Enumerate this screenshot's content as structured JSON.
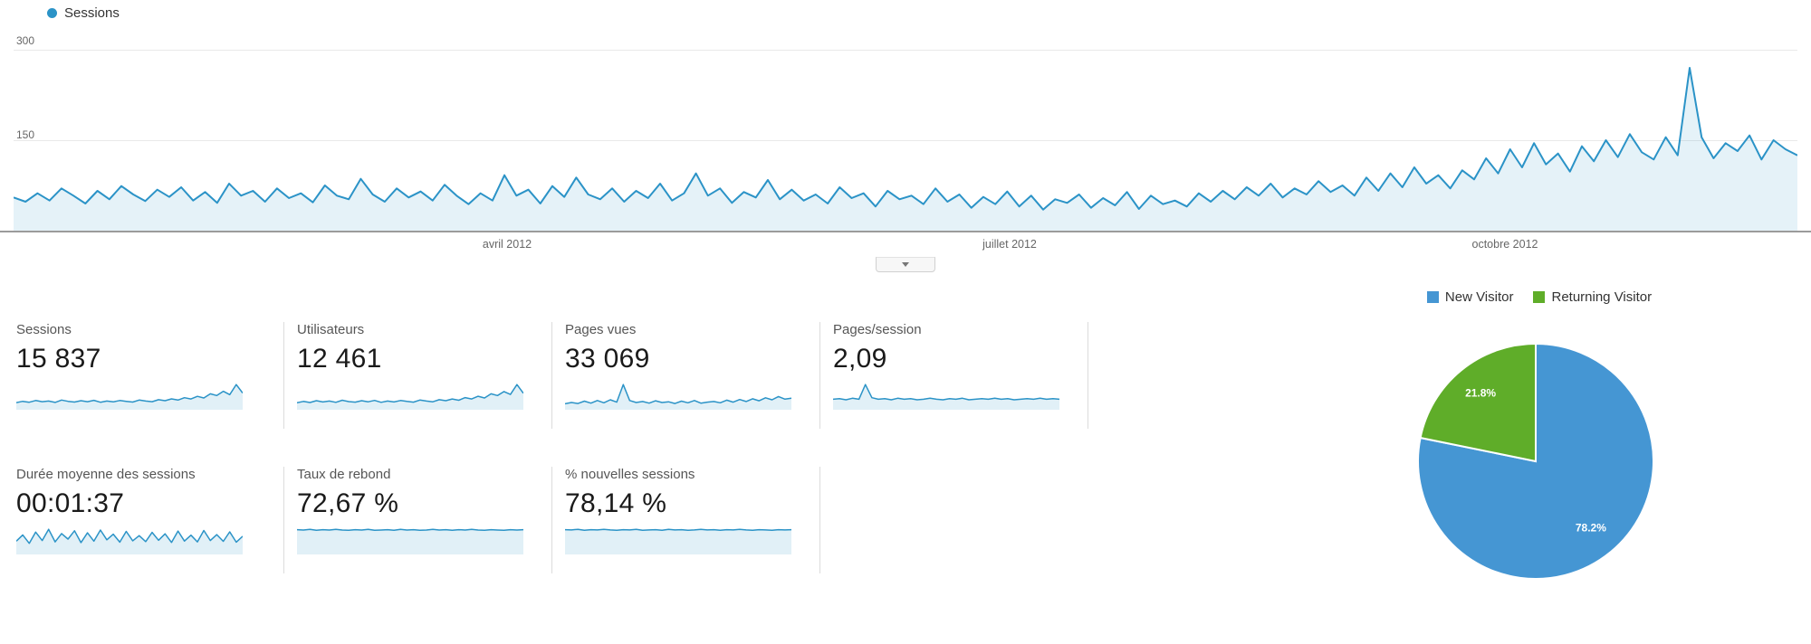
{
  "timeline": {
    "legend": {
      "label": "Sessions",
      "color": "#2b93c7"
    },
    "y_ticks": [
      "300",
      "150"
    ],
    "x_ticks": [
      "avril 2012",
      "juillet 2012",
      "octobre 2012"
    ],
    "line_color": "#2b93c7",
    "fill_color": "rgba(43,147,199,0.12)",
    "grid_color": "#e9e9e9"
  },
  "metrics": {
    "row1": [
      {
        "label": "Sessions",
        "value": "15 837",
        "spark": [
          42,
          50,
          45,
          55,
          48,
          52,
          44,
          58,
          50,
          46,
          54,
          48,
          56,
          45,
          52,
          47,
          55,
          50,
          46,
          58,
          52,
          48,
          60,
          54,
          65,
          58,
          72,
          64,
          80,
          70,
          95,
          85,
          110,
          90,
          150,
          100
        ]
      },
      {
        "label": "Utilisateurs",
        "value": "12 461",
        "spark": [
          40,
          48,
          42,
          52,
          45,
          50,
          43,
          55,
          47,
          44,
          52,
          46,
          54,
          43,
          50,
          45,
          53,
          48,
          44,
          56,
          50,
          46,
          58,
          52,
          62,
          55,
          70,
          62,
          78,
          68,
          92,
          82,
          105,
          88,
          145,
          95
        ]
      },
      {
        "label": "Pages vues",
        "value": "33 069",
        "spark": [
          90,
          110,
          95,
          130,
          100,
          140,
          105,
          150,
          115,
          380,
          140,
          110,
          125,
          100,
          135,
          110,
          120,
          95,
          130,
          105,
          140,
          100,
          115,
          125,
          105,
          145,
          115,
          155,
          125,
          165,
          135,
          180,
          150,
          200,
          160,
          175
        ]
      },
      {
        "label": "Pages/session",
        "value": "2,09",
        "spark": [
          2.0,
          2.1,
          1.9,
          2.2,
          2.0,
          4.8,
          2.3,
          2.0,
          2.1,
          1.9,
          2.2,
          2.0,
          2.1,
          1.9,
          2.0,
          2.2,
          2.0,
          1.9,
          2.1,
          2.0,
          2.2,
          1.9,
          2.0,
          2.1,
          2.0,
          2.2,
          2.0,
          2.1,
          1.9,
          2.0,
          2.1,
          2.0,
          2.2,
          2.0,
          2.1,
          2.0
        ]
      }
    ],
    "row2": [
      {
        "label": "Durée moyenne des sessions",
        "value": "00:01:37",
        "spark": [
          95,
          140,
          80,
          160,
          100,
          180,
          90,
          150,
          110,
          170,
          85,
          155,
          95,
          175,
          105,
          145,
          88,
          165,
          98,
          135,
          92,
          158,
          102,
          148,
          86,
          168,
          96,
          138,
          90,
          172,
          100,
          142,
          94,
          162,
          88,
          130
        ]
      },
      {
        "label": "Taux de rebond",
        "value": "72,67 %",
        "spark": [
          73,
          72,
          74,
          71,
          73,
          72,
          74,
          72,
          71,
          73,
          72,
          74,
          71,
          72,
          73,
          71,
          74,
          72,
          73,
          71,
          72,
          74,
          72,
          73,
          71,
          73,
          72,
          74,
          72,
          71,
          73,
          72,
          71,
          73,
          72,
          73
        ]
      },
      {
        "label": "% nouvelles sessions",
        "value": "78,14 %",
        "spark": [
          79,
          78,
          80,
          77,
          79,
          78,
          80,
          78,
          77,
          79,
          78,
          80,
          77,
          78,
          79,
          77,
          80,
          78,
          79,
          77,
          78,
          80,
          78,
          79,
          77,
          79,
          78,
          80,
          78,
          77,
          79,
          78,
          77,
          79,
          78,
          79
        ]
      }
    ]
  },
  "pie": {
    "legend": [
      {
        "label": "New Visitor",
        "color": "#4596d3"
      },
      {
        "label": "Returning Visitor",
        "color": "#5fad29"
      }
    ],
    "slices": [
      {
        "label": "New Visitor",
        "pct": 78.2,
        "display": "78.2%",
        "color": "#4596d3"
      },
      {
        "label": "Returning Visitor",
        "pct": 21.8,
        "display": "21.8%",
        "color": "#5fad29"
      }
    ]
  },
  "chart_data": [
    {
      "type": "line",
      "title": "Sessions",
      "ylabel": "Sessions",
      "ylim": [
        0,
        300
      ],
      "y_ticks": [
        150,
        300
      ],
      "x_ticks": [
        "avril 2012",
        "juillet 2012",
        "octobre 2012"
      ],
      "grid": "horizontal",
      "legend_position": "top-left",
      "series": [
        {
          "name": "Sessions",
          "values": [
            55,
            48,
            62,
            50,
            70,
            58,
            45,
            66,
            52,
            74,
            60,
            49,
            68,
            56,
            72,
            50,
            64,
            46,
            78,
            58,
            66,
            48,
            70,
            54,
            62,
            47,
            75,
            58,
            52,
            86,
            60,
            48,
            70,
            55,
            65,
            50,
            76,
            58,
            44,
            62,
            50,
            92,
            58,
            68,
            45,
            74,
            56,
            88,
            60,
            52,
            70,
            48,
            66,
            54,
            78,
            50,
            62,
            95,
            58,
            70,
            46,
            64,
            55,
            84,
            52,
            68,
            50,
            60,
            45,
            72,
            54,
            62,
            40,
            66,
            52,
            58,
            44,
            70,
            48,
            60,
            38,
            56,
            44,
            65,
            40,
            58,
            35,
            52,
            46,
            60,
            38,
            54,
            42,
            64,
            36,
            58,
            44,
            50,
            40,
            62,
            48,
            66,
            52,
            72,
            58,
            78,
            55,
            70,
            60,
            82,
            64,
            75,
            58,
            88,
            66,
            95,
            72,
            105,
            78,
            92,
            70,
            100,
            85,
            120,
            95,
            135,
            105,
            145,
            110,
            128,
            98,
            140,
            115,
            150,
            122,
            160,
            130,
            118,
            155,
            125,
            270,
            155,
            120,
            145,
            132,
            158,
            118,
            150,
            135,
            125
          ]
        }
      ]
    },
    {
      "type": "pie",
      "labels": [
        "New Visitor",
        "Returning Visitor"
      ],
      "values": [
        78.2,
        21.8
      ],
      "data_labels": [
        "78.2%",
        "21.8%"
      ],
      "colors": [
        "#4596d3",
        "#5fad29"
      ],
      "legend_position": "top"
    }
  ]
}
